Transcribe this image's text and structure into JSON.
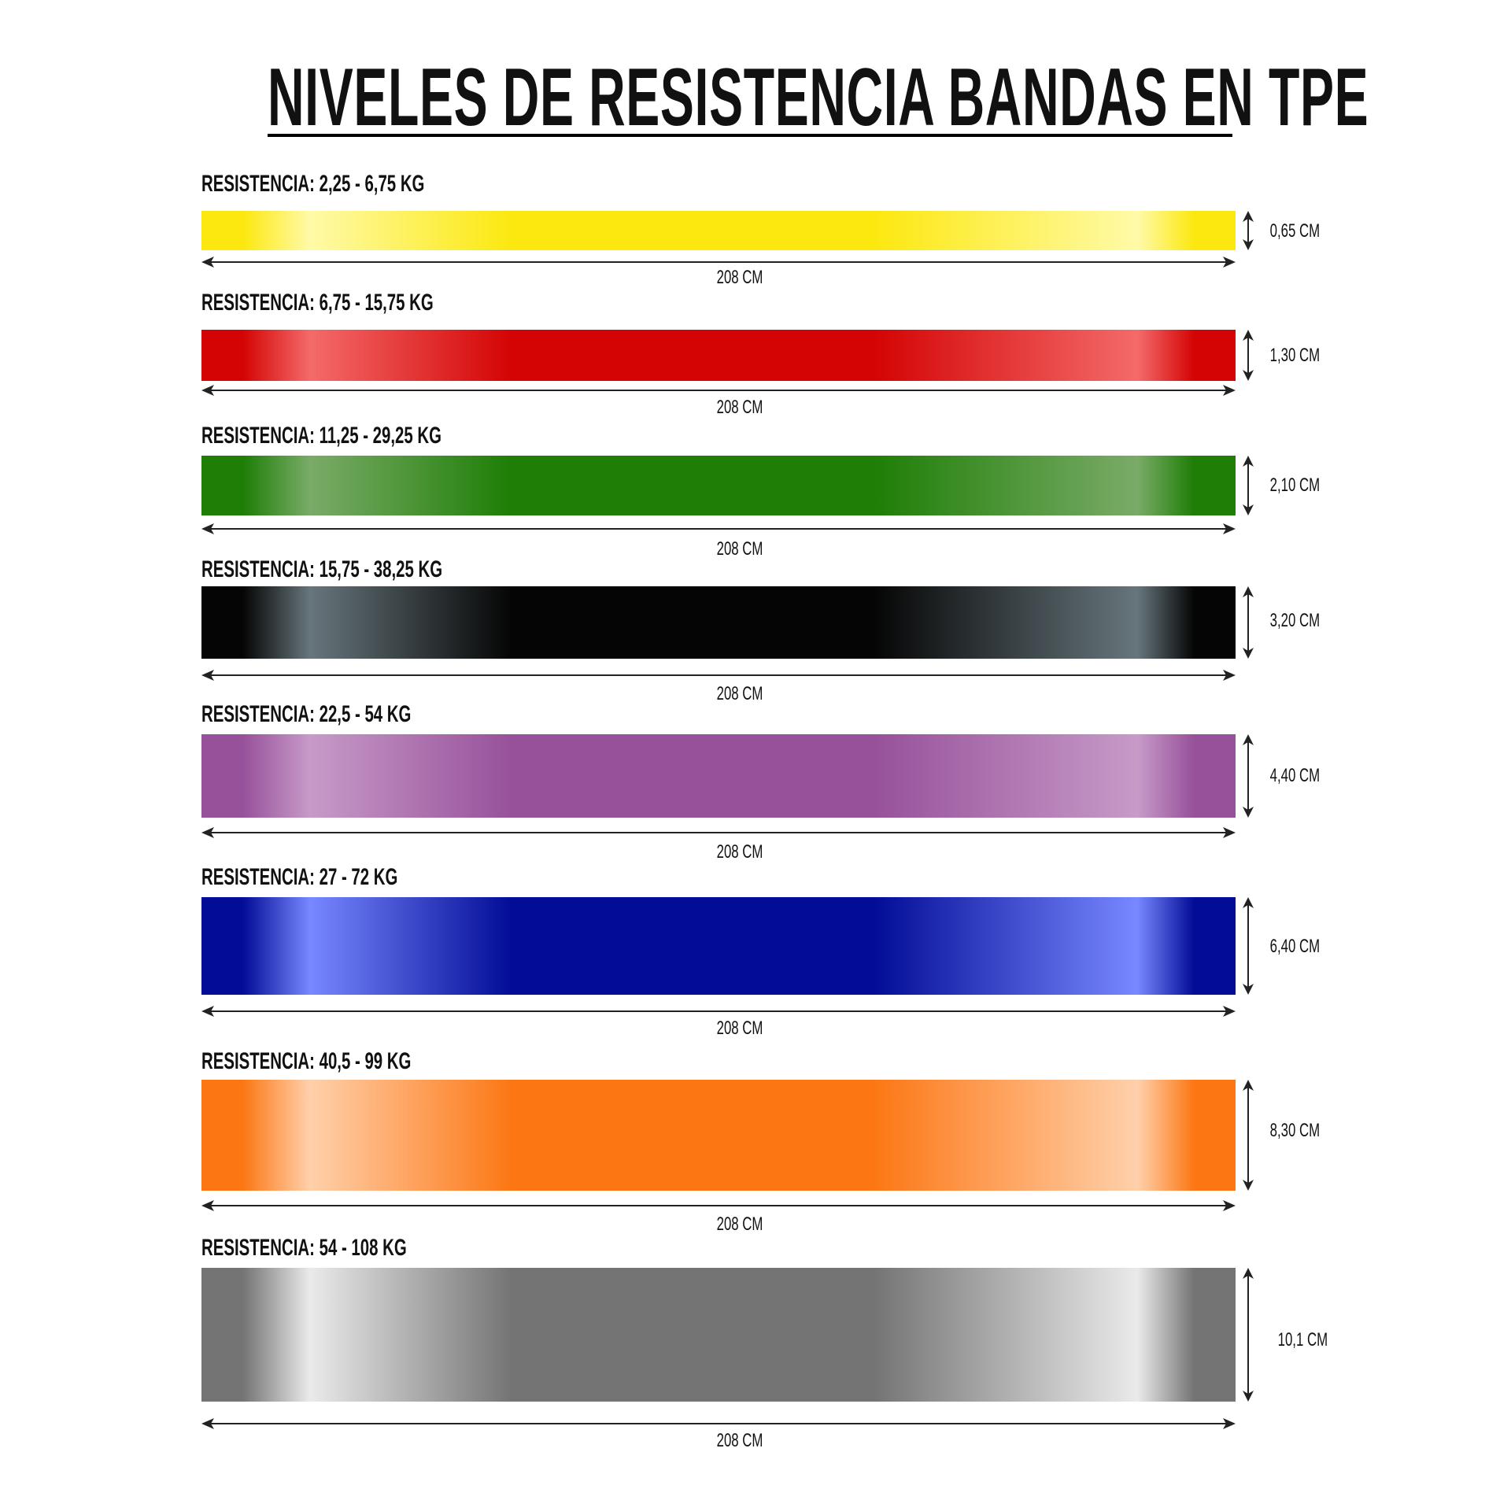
{
  "title": "NIVELES DE RESISTENCIA BANDAS EN TPE",
  "bands": [
    {
      "resistance": "RESISTENCIA: 2,25 - 6,75 KG",
      "length": "208 CM",
      "width": "0,65 CM",
      "color": "#fce80f",
      "highlight": "#fffaa8"
    },
    {
      "resistance": "RESISTENCIA: 6,75 - 15,75 KG",
      "length": "208 CM",
      "width": "1,30 CM",
      "color": "#d40404",
      "highlight": "#f46a6a"
    },
    {
      "resistance": "RESISTENCIA: 11,25 - 29,25 KG",
      "length": "208 CM",
      "width": "2,10 CM",
      "color": "#1e7e06",
      "highlight": "#7aab68"
    },
    {
      "resistance": "RESISTENCIA: 15,75 - 38,25 KG",
      "length": "208 CM",
      "width": "3,20 CM",
      "color": "#050505",
      "highlight": "#67767c"
    },
    {
      "resistance": "RESISTENCIA: 22,5 - 54 KG",
      "length": "208 CM",
      "width": "4,40 CM",
      "color": "#97519a",
      "highlight": "#c79ac8"
    },
    {
      "resistance": "RESISTENCIA: 27 - 72 KG",
      "length": "208 CM",
      "width": "6,40 CM",
      "color": "#020c96",
      "highlight": "#7888ff"
    },
    {
      "resistance": "RESISTENCIA: 40,5 - 99 KG",
      "length": "208 CM",
      "width": "8,30 CM",
      "color": "#fc7714",
      "highlight": "#ffd0ab"
    },
    {
      "resistance": "RESISTENCIA: 54 - 108 KG",
      "length": "208 CM",
      "width": "10,1 CM",
      "color": "#747474",
      "highlight": "#eaeaea"
    }
  ]
}
